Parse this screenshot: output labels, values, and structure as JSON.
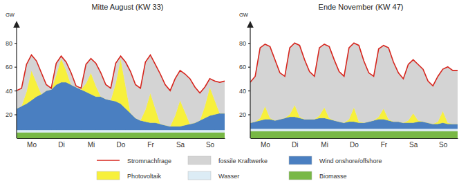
{
  "chart_data": [
    {
      "type": "area",
      "title": "Mitte August (KW 33)",
      "y_label": "GW",
      "stacked": true,
      "grid": false,
      "legend": "bottom",
      "x": [
        0,
        4,
        8,
        12,
        16,
        20,
        24,
        28,
        32,
        36,
        40,
        44,
        48,
        52,
        56,
        60,
        64,
        68,
        72,
        76,
        80,
        84,
        88,
        92,
        96,
        100,
        104,
        108,
        112,
        116,
        120,
        124,
        128,
        132,
        136,
        140,
        144,
        148,
        152,
        156,
        160,
        164,
        168
      ],
      "xlim": [
        0,
        168
      ],
      "xticks": [
        {
          "value": 12,
          "label": "Mo"
        },
        {
          "value": 36,
          "label": "Di"
        },
        {
          "value": 60,
          "label": "Mi"
        },
        {
          "value": 84,
          "label": "Do"
        },
        {
          "value": 108,
          "label": "Fr"
        },
        {
          "value": 132,
          "label": "Sa"
        },
        {
          "value": 156,
          "label": "So"
        }
      ],
      "ylim": [
        0,
        90
      ],
      "yticks": [
        20,
        40,
        60,
        80
      ],
      "series": [
        {
          "name": "Stromnachfrage",
          "type": "line",
          "color": "#d7261e",
          "values": [
            40,
            42,
            62,
            70,
            65,
            55,
            45,
            42,
            63,
            69,
            64,
            55,
            44,
            42,
            62,
            67,
            63,
            55,
            45,
            42,
            63,
            69,
            64,
            56,
            45,
            42,
            64,
            70,
            62,
            54,
            45,
            40,
            50,
            57,
            54,
            50,
            43,
            38,
            43,
            50,
            48,
            47,
            48
          ]
        },
        {
          "name": "fossile Kraftwerke",
          "type": "area",
          "color": "#d4d4d4",
          "values": [
            15,
            15,
            23,
            13,
            18,
            18,
            5,
            1,
            10,
            2,
            7,
            10,
            1,
            1,
            16,
            12,
            19,
            20,
            12,
            10,
            17,
            2,
            20,
            35,
            28,
            27,
            40,
            32,
            37,
            42,
            34,
            30,
            31,
            25,
            32,
            38,
            30,
            23,
            16,
            7,
            16,
            26,
            27
          ]
        },
        {
          "name": "Photovoltaik",
          "type": "area",
          "color": "#f7f03c",
          "values": [
            0,
            0,
            10,
            25,
            12,
            0,
            0,
            0,
            8,
            20,
            10,
            0,
            0,
            0,
            7,
            18,
            9,
            0,
            0,
            0,
            15,
            38,
            19,
            0,
            0,
            0,
            10,
            25,
            12,
            0,
            0,
            0,
            9,
            22,
            11,
            0,
            0,
            0,
            10,
            24,
            12,
            0,
            0
          ]
        },
        {
          "name": "Wind onshore/offshore",
          "type": "area",
          "color": "#4a7fc1",
          "values": [
            18,
            20,
            22,
            25,
            28,
            30,
            33,
            34,
            38,
            40,
            40,
            38,
            36,
            34,
            32,
            30,
            28,
            28,
            26,
            25,
            24,
            22,
            18,
            14,
            10,
            8,
            7,
            6,
            6,
            5,
            4,
            3,
            3,
            3,
            4,
            5,
            6,
            8,
            10,
            12,
            13,
            14,
            14
          ]
        },
        {
          "name": "Wasser",
          "type": "area",
          "color": "#dcecf5",
          "values": [
            2,
            2,
            2,
            2,
            2,
            2,
            2,
            2,
            2,
            2,
            2,
            2,
            2,
            2,
            2,
            2,
            2,
            2,
            2,
            2,
            2,
            2,
            2,
            2,
            2,
            2,
            2,
            2,
            2,
            2,
            2,
            2,
            2,
            2,
            2,
            2,
            2,
            2,
            2,
            2,
            2,
            2,
            2
          ]
        },
        {
          "name": "Biomasse",
          "type": "area",
          "color": "#78b845",
          "values": [
            5,
            5,
            5,
            5,
            5,
            5,
            5,
            5,
            5,
            5,
            5,
            5,
            5,
            5,
            5,
            5,
            5,
            5,
            5,
            5,
            5,
            5,
            5,
            5,
            5,
            5,
            5,
            5,
            5,
            5,
            5,
            5,
            5,
            5,
            5,
            5,
            5,
            5,
            5,
            5,
            5,
            5,
            5
          ]
        }
      ]
    },
    {
      "type": "area",
      "title": "Ende November (KW 47)",
      "y_label": "GW",
      "stacked": true,
      "grid": false,
      "x": [
        0,
        4,
        8,
        12,
        16,
        20,
        24,
        28,
        32,
        36,
        40,
        44,
        48,
        52,
        56,
        60,
        64,
        68,
        72,
        76,
        80,
        84,
        88,
        92,
        96,
        100,
        104,
        108,
        112,
        116,
        120,
        124,
        128,
        132,
        136,
        140,
        144,
        148,
        152,
        156,
        160,
        164,
        168
      ],
      "xlim": [
        0,
        168
      ],
      "xticks": [
        {
          "value": 12,
          "label": "Mo"
        },
        {
          "value": 36,
          "label": "Di"
        },
        {
          "value": 60,
          "label": "Mi"
        },
        {
          "value": 84,
          "label": "Do"
        },
        {
          "value": 108,
          "label": "Fr"
        },
        {
          "value": 132,
          "label": "Sa"
        },
        {
          "value": 156,
          "label": "So"
        }
      ],
      "ylim": [
        0,
        90
      ],
      "yticks": [
        20,
        40,
        60,
        80
      ],
      "series": [
        {
          "name": "Stromnachfrage",
          "type": "line",
          "color": "#d7261e",
          "values": [
            47,
            52,
            76,
            79,
            77,
            66,
            55,
            52,
            76,
            80,
            78,
            66,
            56,
            52,
            76,
            79,
            77,
            66,
            56,
            52,
            76,
            80,
            78,
            65,
            55,
            52,
            75,
            78,
            76,
            64,
            55,
            50,
            62,
            66,
            62,
            58,
            48,
            44,
            52,
            58,
            60,
            57,
            57
          ]
        },
        {
          "name": "fossile Kraftwerke",
          "type": "area",
          "color": "#d4d4d4",
          "values": [
            34,
            38,
            59,
            52,
            60,
            51,
            39,
            35,
            56,
            52,
            60,
            50,
            40,
            36,
            57,
            53,
            60,
            51,
            42,
            39,
            60,
            54,
            64,
            52,
            41,
            37,
            57,
            53,
            60,
            50,
            41,
            37,
            47,
            45,
            47,
            44,
            35,
            32,
            38,
            35,
            47,
            45,
            45
          ]
        },
        {
          "name": "Photovoltaik",
          "type": "area",
          "color": "#f7f03c",
          "values": [
            0,
            0,
            2,
            11,
            1,
            0,
            0,
            0,
            2,
            10,
            1,
            0,
            0,
            0,
            2,
            9,
            1,
            0,
            0,
            0,
            2,
            12,
            1,
            0,
            0,
            0,
            2,
            9,
            1,
            0,
            0,
            0,
            2,
            8,
            1,
            0,
            0,
            0,
            2,
            10,
            1,
            0,
            0
          ]
        },
        {
          "name": "Wind onshore/offshore",
          "type": "area",
          "color": "#4a7fc1",
          "values": [
            5,
            6,
            7,
            8,
            8,
            7,
            8,
            9,
            10,
            10,
            9,
            8,
            8,
            8,
            9,
            9,
            8,
            7,
            6,
            5,
            6,
            6,
            5,
            5,
            6,
            7,
            8,
            8,
            7,
            6,
            6,
            5,
            5,
            5,
            6,
            6,
            5,
            4,
            4,
            5,
            4,
            4,
            4
          ]
        },
        {
          "name": "Wasser",
          "type": "area",
          "color": "#dcecf5",
          "values": [
            2,
            2,
            2,
            2,
            2,
            2,
            2,
            2,
            2,
            2,
            2,
            2,
            2,
            2,
            2,
            2,
            2,
            2,
            2,
            2,
            2,
            2,
            2,
            2,
            2,
            2,
            2,
            2,
            2,
            2,
            2,
            2,
            2,
            2,
            2,
            2,
            2,
            2,
            2,
            2,
            2,
            2,
            2
          ]
        },
        {
          "name": "Biomasse",
          "type": "area",
          "color": "#78b845",
          "values": [
            6,
            6,
            6,
            6,
            6,
            6,
            6,
            6,
            6,
            6,
            6,
            6,
            6,
            6,
            6,
            6,
            6,
            6,
            6,
            6,
            6,
            6,
            6,
            6,
            6,
            6,
            6,
            6,
            6,
            6,
            6,
            6,
            6,
            6,
            6,
            6,
            6,
            6,
            6,
            6,
            6,
            6,
            6
          ]
        }
      ]
    }
  ]
}
